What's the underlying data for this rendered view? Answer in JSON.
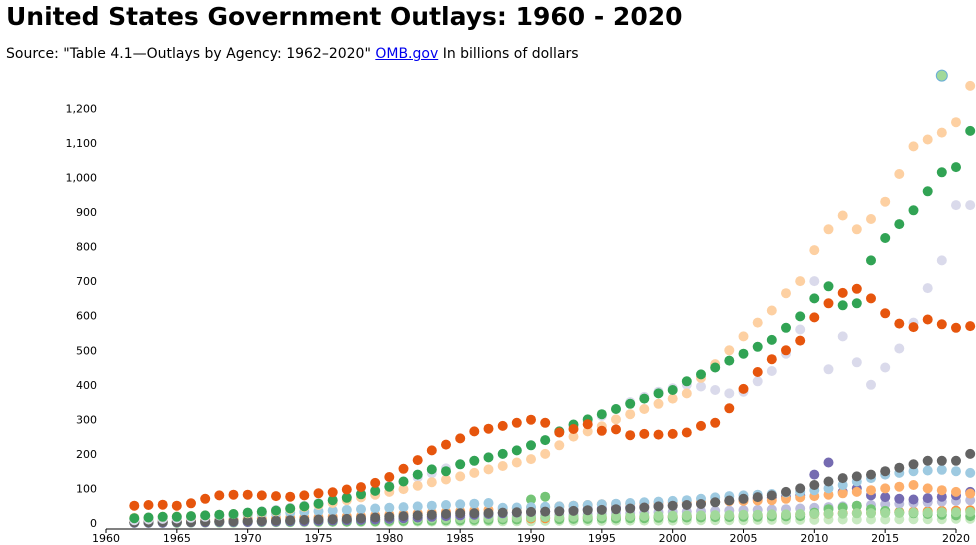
{
  "title": "United States Government Outlays: 1960 - 2020",
  "subtitle": {
    "prefix": "Source: \"Table 4.1—Outlays by Agency: 1962–2020\"",
    "link": "OMB.gov",
    "suffix": "In billions of dollars"
  },
  "chart_data": {
    "type": "scatter",
    "xlim": [
      1960,
      2020
    ],
    "ylim": [
      0,
      1300
    ],
    "x_ticks": [
      1960,
      1965,
      1970,
      1975,
      1980,
      1985,
      1990,
      1995,
      2000,
      2005,
      2010,
      2015,
      2020
    ],
    "y_ticks": [
      0,
      100,
      200,
      300,
      400,
      500,
      600,
      700,
      800,
      900,
      1000,
      1100,
      1200
    ],
    "y_tick_labels": [
      "0",
      "100",
      "200",
      "300",
      "400",
      "500",
      "600",
      "700",
      "800",
      "900",
      "1,000",
      "1,100",
      "1,200"
    ],
    "grid": false,
    "legend": "none",
    "series": [
      {
        "color": "#e6550d",
        "x_start": 1962,
        "values": [
          50,
          52,
          53,
          50,
          57,
          70,
          80,
          82,
          82,
          80,
          78,
          76,
          80,
          86,
          89,
          97,
          104,
          116,
          133,
          157,
          182,
          210,
          227,
          245,
          265,
          273,
          281,
          290,
          299,
          290,
          262,
          272,
          286,
          267,
          271,
          254,
          258,
          256,
          258,
          262,
          281,
          290,
          332,
          388,
          437,
          474,
          500,
          528,
          595,
          636,
          666,
          678,
          650,
          607,
          577,
          567,
          589,
          575,
          565,
          570
        ]
      },
      {
        "color": "#31a354",
        "x_start": 1962,
        "values": [
          14,
          16,
          18,
          18,
          20,
          22,
          24,
          26,
          30,
          33,
          36,
          42,
          48,
          56,
          66,
          73,
          83,
          93,
          105,
          120,
          140,
          155,
          150,
          170,
          180,
          190,
          200,
          210,
          225,
          240,
          265,
          285,
          300,
          315,
          330,
          345,
          360,
          375,
          385,
          410,
          430,
          450,
          470,
          490,
          510,
          530,
          565,
          598,
          650,
          685,
          630,
          636,
          760,
          825,
          865,
          905,
          960,
          1015,
          1030,
          1135
        ]
      },
      {
        "color": "#fdd0a2",
        "x_start": 1962,
        "values": [
          15,
          16,
          18,
          19,
          20,
          22,
          24,
          26,
          28,
          31,
          34,
          40,
          46,
          52,
          58,
          66,
          74,
          82,
          90,
          98,
          108,
          118,
          126,
          135,
          145,
          155,
          165,
          175,
          185,
          200,
          225,
          250,
          265,
          280,
          300,
          315,
          330,
          345,
          360,
          375,
          420,
          460,
          500,
          540,
          580,
          615,
          665,
          700,
          790,
          850,
          890,
          850,
          880,
          930,
          1010,
          1090,
          1110,
          1130,
          1160,
          1265
        ]
      },
      {
        "color": "#dadaeb",
        "x_start": 1962,
        "values": [
          8,
          10,
          12,
          13,
          15,
          18,
          22,
          26,
          30,
          34,
          38,
          44,
          50,
          58,
          66,
          76,
          86,
          96,
          108,
          120,
          132,
          144,
          158,
          170,
          180,
          190,
          200,
          210,
          225,
          240,
          265,
          280,
          295,
          310,
          330,
          350,
          365,
          380,
          390,
          400,
          395,
          385,
          375,
          380,
          410,
          440,
          490,
          560,
          700,
          445,
          540,
          465,
          400,
          450,
          505,
          580,
          680,
          760,
          920,
          920
        ]
      },
      {
        "color": "#636363",
        "x_start": 1962,
        "values": [
          2,
          2,
          3,
          3,
          3,
          4,
          5,
          5,
          6,
          6,
          7,
          8,
          9,
          10,
          11,
          12,
          14,
          16,
          18,
          20,
          22,
          24,
          26,
          28,
          28,
          29,
          30,
          31,
          32,
          33,
          34,
          35,
          37,
          38,
          40,
          42,
          45,
          48,
          50,
          52,
          55,
          60,
          65,
          70,
          75,
          80,
          90,
          100,
          110,
          120,
          130,
          135,
          140,
          150,
          160,
          170,
          180,
          180,
          180,
          200
        ]
      },
      {
        "color": "#9ecae1",
        "x_start": 1962,
        "values": [
          10,
          12,
          13,
          14,
          16,
          18,
          20,
          22,
          24,
          26,
          28,
          30,
          32,
          34,
          36,
          38,
          40,
          42,
          44,
          46,
          48,
          50,
          52,
          54,
          56,
          58,
          44,
          45,
          46,
          47,
          48,
          50,
          52,
          54,
          56,
          58,
          60,
          62,
          64,
          66,
          70,
          74,
          78,
          80,
          82,
          84,
          88,
          90,
          95,
          100,
          110,
          120,
          130,
          140,
          145,
          150,
          152,
          154,
          150,
          145
        ]
      },
      {
        "color": "#fdae6b",
        "x_start": 1962,
        "values": [
          5,
          6,
          7,
          8,
          8,
          9,
          10,
          11,
          12,
          13,
          14,
          15,
          16,
          17,
          18,
          19,
          20,
          22,
          24,
          26,
          28,
          30,
          32,
          34,
          36,
          38,
          40,
          42,
          44,
          46,
          48,
          50,
          52,
          54,
          55,
          56,
          57,
          58,
          59,
          60,
          61,
          62,
          63,
          64,
          65,
          66,
          70,
          74,
          78,
          82,
          86,
          90,
          95,
          100,
          105,
          110,
          100,
          95,
          90,
          85
        ]
      },
      {
        "color": "#756bb1",
        "x_start": 1962,
        "values": [
          1,
          1,
          1,
          2,
          2,
          2,
          3,
          3,
          3,
          4,
          4,
          5,
          5,
          6,
          7,
          8,
          9,
          10,
          12,
          14,
          16,
          18,
          20,
          22,
          24,
          26,
          28,
          30,
          32,
          34,
          36,
          38,
          40,
          42,
          44,
          46,
          48,
          50,
          52,
          55,
          58,
          61,
          64,
          67,
          70,
          73,
          76,
          80,
          140,
          175,
          90,
          100,
          80,
          75,
          70,
          68,
          72,
          76,
          80,
          90
        ]
      },
      {
        "color": "#a1d99b",
        "x_start": 1962,
        "values": [
          3,
          3,
          4,
          4,
          4,
          5,
          5,
          6,
          6,
          7,
          7,
          8,
          8,
          9,
          9,
          10,
          10,
          11,
          11,
          12,
          12,
          13,
          13,
          14,
          14,
          15,
          15,
          16,
          16,
          17,
          17,
          18,
          18,
          19,
          19,
          20,
          20,
          21,
          21,
          22,
          22,
          23,
          23,
          24,
          24,
          25,
          25,
          26,
          26,
          27,
          27,
          28,
          28,
          29,
          29,
          30,
          30,
          31,
          31,
          32
        ]
      },
      {
        "color": "#74c476",
        "x_start": 1962,
        "values": [
          1,
          1,
          1,
          1,
          2,
          2,
          2,
          2,
          3,
          3,
          3,
          3,
          4,
          4,
          4,
          4,
          5,
          5,
          6,
          6,
          7,
          7,
          8,
          8,
          9,
          9,
          10,
          10,
          68,
          76,
          11,
          12,
          12,
          13,
          13,
          14,
          14,
          15,
          15,
          16,
          16,
          17,
          17,
          18,
          18,
          19,
          19,
          20,
          30,
          40,
          45,
          50,
          40,
          35,
          30,
          28,
          26,
          24,
          22,
          20
        ]
      },
      {
        "color": "#bcbddc",
        "x_start": 1962,
        "values": [
          4,
          4,
          5,
          5,
          5,
          6,
          6,
          7,
          7,
          8,
          8,
          9,
          9,
          10,
          10,
          11,
          11,
          12,
          12,
          13,
          14,
          15,
          16,
          17,
          18,
          19,
          20,
          21,
          22,
          23,
          24,
          25,
          26,
          27,
          28,
          29,
          30,
          31,
          32,
          33,
          34,
          35,
          36,
          37,
          38,
          39,
          40,
          42,
          44,
          46,
          48,
          50,
          52,
          54,
          56,
          58,
          60,
          62,
          64,
          66
        ]
      },
      {
        "color": "#fd8d3c",
        "x_start": 1962,
        "values": [
          2,
          2,
          2,
          3,
          3,
          3,
          4,
          4,
          4,
          5,
          5,
          5,
          6,
          6,
          6,
          7,
          7,
          8,
          8,
          9,
          9,
          10,
          10,
          11,
          11,
          12,
          12,
          13,
          13,
          14,
          14,
          15,
          15,
          16,
          16,
          17,
          17,
          18,
          18,
          19,
          19,
          20,
          20,
          21,
          22,
          23,
          24,
          25,
          26,
          27,
          28,
          29,
          30,
          31,
          32,
          33,
          34,
          35,
          36,
          37
        ]
      },
      {
        "color": "#c7e9c0",
        "x_start": 1962,
        "values": [
          1,
          1,
          1,
          1,
          1,
          1,
          1,
          1,
          2,
          2,
          2,
          2,
          2,
          2,
          3,
          3,
          3,
          3,
          3,
          4,
          4,
          4,
          4,
          4,
          5,
          5,
          5,
          5,
          5,
          6,
          6,
          6,
          6,
          6,
          7,
          7,
          7,
          7,
          7,
          8,
          8,
          8,
          8,
          8,
          9,
          9,
          9,
          9,
          9,
          10,
          10,
          10,
          10,
          10,
          11,
          11,
          11,
          11,
          12,
          12
        ]
      }
    ],
    "extra_points": [
      {
        "x": 2019,
        "value": 1295,
        "color": "#a1d99b",
        "stroke": "#6baed6"
      }
    ]
  }
}
